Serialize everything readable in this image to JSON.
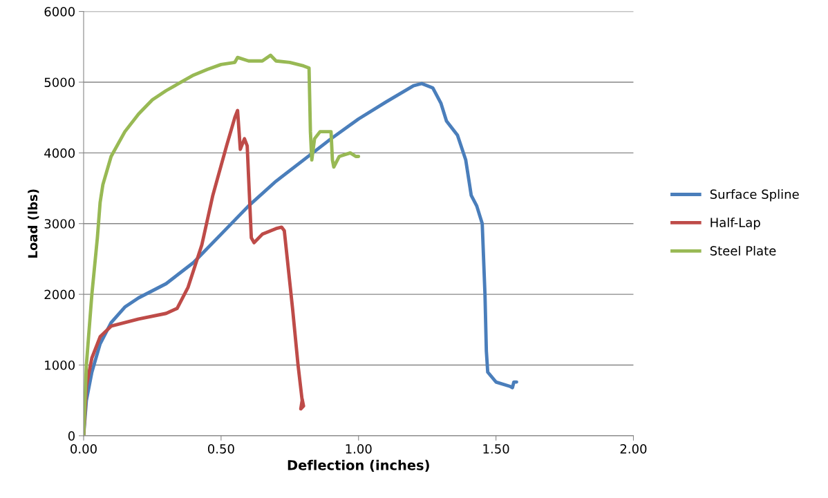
{
  "chart_data": {
    "type": "line",
    "xlabel": "Deflection (inches)",
    "ylabel": "Load (lbs)",
    "xlim": [
      0,
      2
    ],
    "ylim": [
      0,
      6000
    ],
    "xticks": [
      {
        "value": 0,
        "label": "0.00"
      },
      {
        "value": 0.5,
        "label": "0.50"
      },
      {
        "value": 1,
        "label": "1.00"
      },
      {
        "value": 1.5,
        "label": "1.50"
      },
      {
        "value": 2,
        "label": "2.00"
      }
    ],
    "yticks": [
      0,
      1000,
      2000,
      3000,
      4000,
      5000,
      6000
    ],
    "grid": "y",
    "legend": "right",
    "marker": "none",
    "line_style": "solid",
    "series": [
      {
        "name": "Surface Spline",
        "color": "#4a7ebb",
        "x": [
          0,
          0.01,
          0.03,
          0.06,
          0.1,
          0.15,
          0.2,
          0.3,
          0.4,
          0.5,
          0.6,
          0.7,
          0.8,
          0.9,
          1.0,
          1.1,
          1.2,
          1.23,
          1.27,
          1.3,
          1.32,
          1.36,
          1.39,
          1.41,
          1.43,
          1.45,
          1.46,
          1.465,
          1.47,
          1.5,
          1.55,
          1.56,
          1.565,
          1.575
        ],
        "values": [
          0,
          500,
          900,
          1300,
          1600,
          1820,
          1950,
          2150,
          2450,
          2850,
          3250,
          3600,
          3900,
          4200,
          4480,
          4720,
          4950,
          4980,
          4920,
          4700,
          4450,
          4250,
          3900,
          3400,
          3250,
          3000,
          2000,
          1200,
          900,
          760,
          700,
          680,
          760,
          760
        ]
      },
      {
        "name": "Half-Lap",
        "color": "#be4b48",
        "x": [
          0,
          0.01,
          0.03,
          0.06,
          0.1,
          0.2,
          0.3,
          0.34,
          0.38,
          0.43,
          0.47,
          0.52,
          0.55,
          0.56,
          0.57,
          0.585,
          0.595,
          0.61,
          0.62,
          0.65,
          0.7,
          0.72,
          0.73,
          0.76,
          0.78,
          0.795,
          0.79,
          0.8,
          0.795
        ],
        "values": [
          0,
          700,
          1100,
          1400,
          1550,
          1650,
          1730,
          1800,
          2100,
          2700,
          3400,
          4100,
          4500,
          4600,
          4050,
          4200,
          4100,
          2800,
          2730,
          2850,
          2930,
          2950,
          2900,
          1800,
          1000,
          500,
          380,
          420,
          520
        ]
      },
      {
        "name": "Steel Plate",
        "color": "#98b954",
        "x": [
          0,
          0.01,
          0.03,
          0.05,
          0.06,
          0.07,
          0.1,
          0.15,
          0.2,
          0.25,
          0.3,
          0.35,
          0.4,
          0.45,
          0.5,
          0.55,
          0.56,
          0.6,
          0.65,
          0.68,
          0.7,
          0.75,
          0.8,
          0.82,
          0.825,
          0.83,
          0.84,
          0.86,
          0.9,
          0.905,
          0.91,
          0.93,
          0.97,
          0.99,
          1.0
        ],
        "values": [
          0,
          1000,
          2000,
          2800,
          3300,
          3550,
          3950,
          4300,
          4550,
          4750,
          4880,
          4990,
          5100,
          5180,
          5250,
          5280,
          5350,
          5300,
          5300,
          5380,
          5300,
          5280,
          5230,
          5200,
          4300,
          3900,
          4200,
          4300,
          4300,
          3900,
          3800,
          3950,
          4000,
          3950,
          3950
        ]
      }
    ]
  }
}
